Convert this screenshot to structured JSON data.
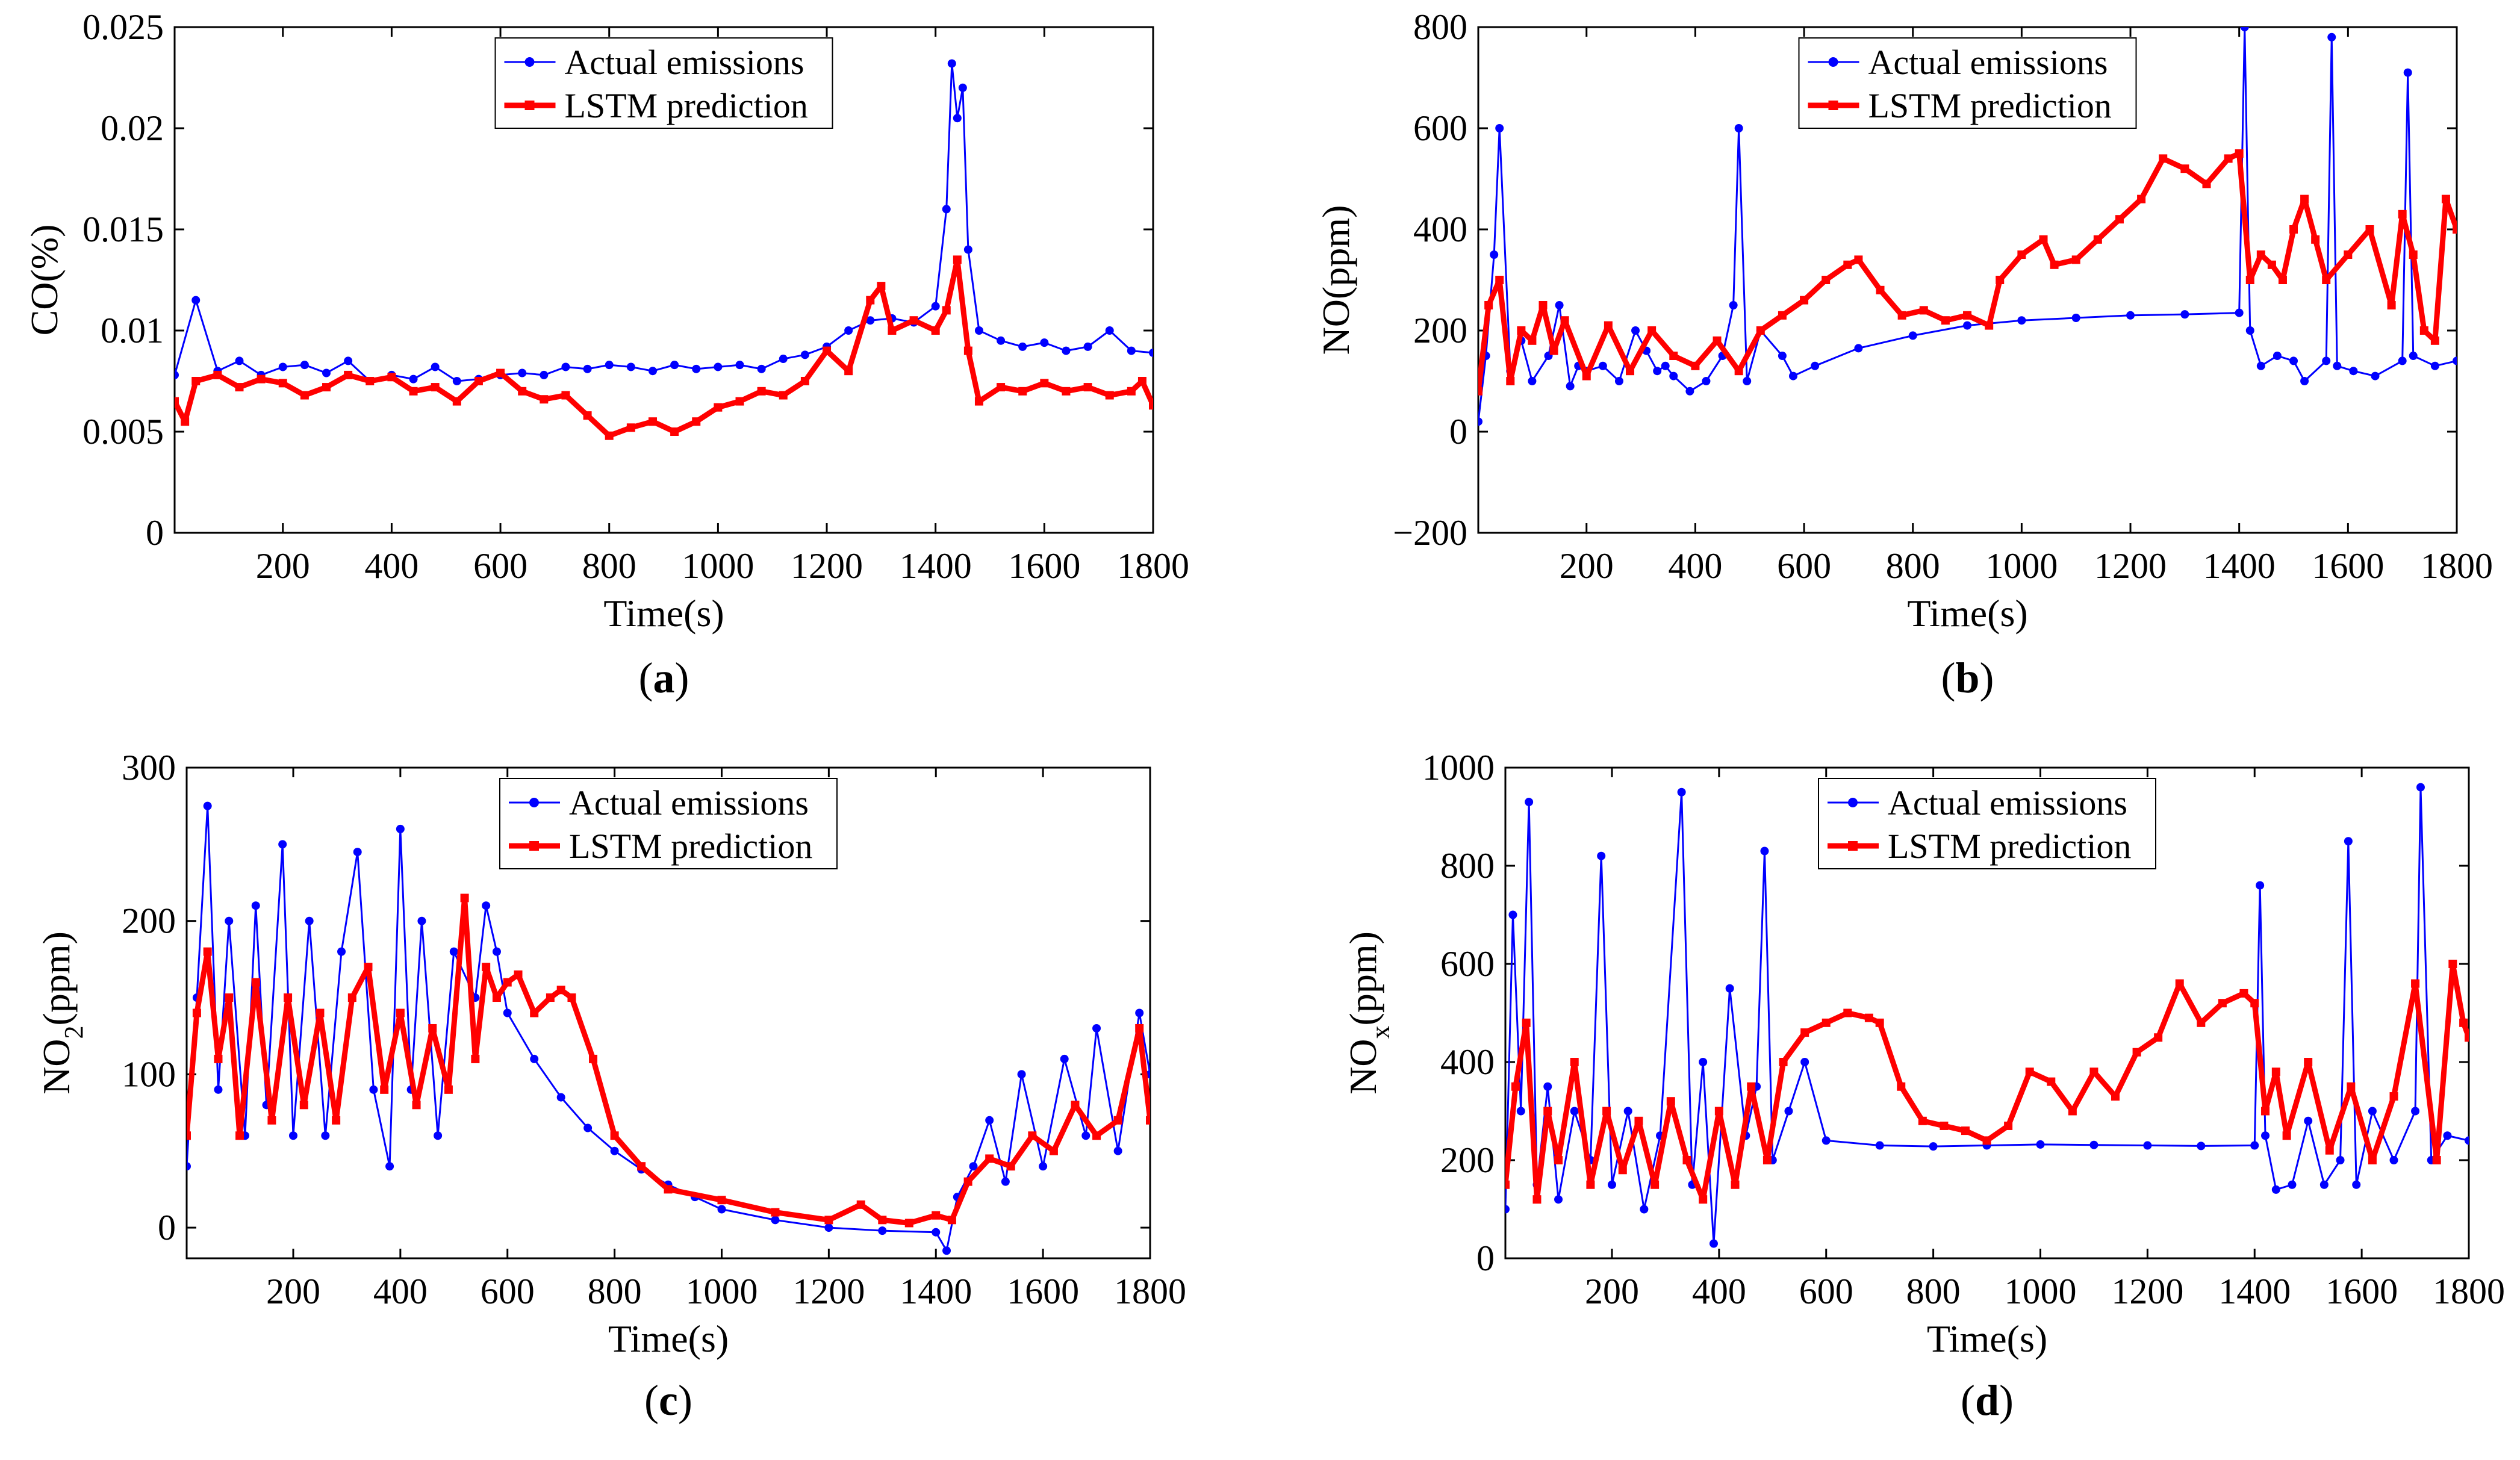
{
  "legend_labels": [
    "Actual emissions",
    "LSTM prediction"
  ],
  "colors": {
    "actual": "#0000ff",
    "prediction": "#ff0000"
  },
  "chart_data": [
    {
      "panel": "(a)",
      "caption_letter": "a",
      "type": "line",
      "xlabel": "Time(s)",
      "ylabel": "CO(%)",
      "xlim": [
        1,
        1800
      ],
      "ylim": [
        0,
        0.025
      ],
      "xticks": [
        200,
        400,
        600,
        800,
        1000,
        1200,
        1400,
        1600,
        1800
      ],
      "xtick_labels": [
        "200",
        "400",
        "600",
        "800",
        "1000",
        "1200",
        "1400",
        "1600",
        "1800"
      ],
      "yticks": [
        0,
        0.005,
        0.01,
        0.015,
        0.02,
        0.025
      ],
      "ytick_labels": [
        "0",
        "0.005",
        "0.01",
        "0.015",
        "0.02",
        "0.025"
      ],
      "legend_position": "top-center",
      "series": [
        {
          "name": "Actual emissions",
          "color": "#0000ff",
          "marker": "dot",
          "x": [
            1,
            40,
            80,
            120,
            160,
            200,
            240,
            280,
            320,
            360,
            400,
            440,
            480,
            520,
            560,
            600,
            640,
            680,
            720,
            760,
            800,
            840,
            880,
            920,
            960,
            1000,
            1040,
            1080,
            1120,
            1160,
            1200,
            1240,
            1280,
            1320,
            1360,
            1400,
            1420,
            1430,
            1440,
            1450,
            1460,
            1480,
            1520,
            1560,
            1600,
            1640,
            1680,
            1720,
            1760,
            1800
          ],
          "y": [
            0.0078,
            0.0115,
            0.008,
            0.0085,
            0.0078,
            0.0082,
            0.0083,
            0.0079,
            0.0085,
            0.0075,
            0.0078,
            0.0076,
            0.0082,
            0.0075,
            0.0076,
            0.0078,
            0.0079,
            0.0078,
            0.0082,
            0.0081,
            0.0083,
            0.0082,
            0.008,
            0.0083,
            0.0081,
            0.0082,
            0.0083,
            0.0081,
            0.0086,
            0.0088,
            0.0092,
            0.01,
            0.0105,
            0.0106,
            0.0104,
            0.0112,
            0.016,
            0.0232,
            0.0205,
            0.022,
            0.014,
            0.01,
            0.0095,
            0.0092,
            0.0094,
            0.009,
            0.0092,
            0.01,
            0.009,
            0.0089
          ]
        },
        {
          "name": "LSTM prediction",
          "color": "#ff0000",
          "marker": "square",
          "x": [
            1,
            20,
            40,
            80,
            120,
            160,
            200,
            240,
            280,
            320,
            360,
            400,
            440,
            480,
            520,
            560,
            600,
            640,
            680,
            720,
            760,
            800,
            840,
            880,
            920,
            960,
            1000,
            1040,
            1080,
            1120,
            1160,
            1200,
            1240,
            1280,
            1300,
            1320,
            1360,
            1400,
            1420,
            1440,
            1460,
            1480,
            1520,
            1560,
            1600,
            1640,
            1680,
            1720,
            1760,
            1780,
            1800
          ],
          "y": [
            0.0065,
            0.0055,
            0.0075,
            0.0078,
            0.0072,
            0.0076,
            0.0074,
            0.0068,
            0.0072,
            0.0078,
            0.0075,
            0.0077,
            0.007,
            0.0072,
            0.0065,
            0.0075,
            0.0079,
            0.007,
            0.0066,
            0.0068,
            0.0058,
            0.0048,
            0.0052,
            0.0055,
            0.005,
            0.0055,
            0.0062,
            0.0065,
            0.007,
            0.0068,
            0.0075,
            0.009,
            0.008,
            0.0115,
            0.0122,
            0.01,
            0.0105,
            0.01,
            0.011,
            0.0135,
            0.009,
            0.0065,
            0.0072,
            0.007,
            0.0074,
            0.007,
            0.0072,
            0.0068,
            0.007,
            0.0075,
            0.0063
          ]
        }
      ]
    },
    {
      "panel": "(b)",
      "caption_letter": "b",
      "type": "line",
      "xlabel": "Time(s)",
      "ylabel": "NO(ppm)",
      "xlim": [
        1,
        1800
      ],
      "ylim": [
        -200,
        800
      ],
      "xticks": [
        200,
        400,
        600,
        800,
        1000,
        1200,
        1400,
        1600,
        1800
      ],
      "xtick_labels": [
        "200",
        "400",
        "600",
        "800",
        "1000",
        "1200",
        "1400",
        "1600",
        "1800"
      ],
      "yticks": [
        -200,
        0,
        200,
        400,
        600,
        800
      ],
      "ytick_labels": [
        "−200",
        "0",
        "200",
        "400",
        "600",
        "800"
      ],
      "legend_position": "top-center",
      "series": [
        {
          "name": "Actual emissions",
          "color": "#0000ff",
          "marker": "dot",
          "x": [
            1,
            15,
            30,
            40,
            60,
            80,
            100,
            130,
            150,
            170,
            185,
            200,
            230,
            260,
            290,
            310,
            330,
            345,
            360,
            390,
            420,
            450,
            470,
            480,
            495,
            520,
            560,
            580,
            620,
            700,
            800,
            900,
            1000,
            1100,
            1200,
            1300,
            1400,
            1410,
            1420,
            1440,
            1470,
            1500,
            1520,
            1560,
            1570,
            1580,
            1610,
            1650,
            1700,
            1710,
            1720,
            1760,
            1800
          ],
          "y": [
            20,
            150,
            350,
            600,
            120,
            180,
            100,
            150,
            250,
            90,
            130,
            120,
            130,
            100,
            200,
            160,
            120,
            130,
            110,
            80,
            100,
            150,
            250,
            600,
            100,
            200,
            150,
            110,
            130,
            165,
            190,
            210,
            220,
            225,
            230,
            232,
            235,
            800,
            200,
            130,
            150,
            140,
            100,
            140,
            780,
            130,
            120,
            110,
            140,
            710,
            150,
            130,
            140
          ]
        },
        {
          "name": "LSTM prediction",
          "color": "#ff0000",
          "marker": "square",
          "x": [
            1,
            20,
            40,
            60,
            80,
            100,
            120,
            140,
            160,
            200,
            240,
            280,
            320,
            360,
            400,
            440,
            480,
            520,
            560,
            600,
            640,
            680,
            700,
            740,
            780,
            820,
            860,
            900,
            940,
            960,
            1000,
            1040,
            1060,
            1100,
            1140,
            1180,
            1220,
            1260,
            1300,
            1340,
            1380,
            1400,
            1420,
            1440,
            1460,
            1480,
            1500,
            1520,
            1540,
            1560,
            1600,
            1640,
            1680,
            1700,
            1720,
            1740,
            1760,
            1780,
            1800
          ],
          "y": [
            80,
            250,
            300,
            100,
            200,
            180,
            250,
            160,
            220,
            110,
            210,
            120,
            200,
            150,
            130,
            180,
            120,
            200,
            230,
            260,
            300,
            330,
            340,
            280,
            230,
            240,
            220,
            230,
            210,
            300,
            350,
            380,
            330,
            340,
            380,
            420,
            460,
            540,
            520,
            490,
            540,
            550,
            300,
            350,
            330,
            300,
            400,
            460,
            380,
            300,
            350,
            400,
            250,
            430,
            350,
            200,
            180,
            460,
            400
          ]
        }
      ]
    },
    {
      "panel": "(c)",
      "caption_letter": "c",
      "type": "line",
      "xlabel": "Time(s)",
      "ylabel": "NO",
      "ylabel_sub": "2",
      "ylabel_after": "(ppm)",
      "xlim": [
        1,
        1800
      ],
      "ylim": [
        -20,
        300
      ],
      "xticks": [
        200,
        400,
        600,
        800,
        1000,
        1200,
        1400,
        1600,
        1800
      ],
      "xtick_labels": [
        "200",
        "400",
        "600",
        "800",
        "1000",
        "1200",
        "1400",
        "1600",
        "1800"
      ],
      "yticks": [
        0,
        100,
        200,
        300
      ],
      "ytick_labels": [
        "0",
        "100",
        "200",
        "300"
      ],
      "legend_position": "top-center",
      "series": [
        {
          "name": "Actual emissions",
          "color": "#0000ff",
          "marker": "dot",
          "x": [
            1,
            20,
            40,
            60,
            80,
            110,
            130,
            150,
            180,
            200,
            230,
            260,
            290,
            320,
            350,
            380,
            400,
            420,
            440,
            470,
            500,
            540,
            560,
            580,
            600,
            650,
            700,
            750,
            800,
            850,
            900,
            950,
            1000,
            1100,
            1200,
            1300,
            1400,
            1420,
            1440,
            1470,
            1500,
            1530,
            1560,
            1600,
            1640,
            1680,
            1700,
            1740,
            1780,
            1800
          ],
          "y": [
            40,
            150,
            275,
            90,
            200,
            60,
            210,
            80,
            250,
            60,
            200,
            60,
            180,
            245,
            90,
            40,
            260,
            90,
            200,
            60,
            180,
            150,
            210,
            180,
            140,
            110,
            85,
            65,
            50,
            38,
            28,
            20,
            12,
            5,
            0,
            -2,
            -3,
            -15,
            20,
            40,
            70,
            30,
            100,
            40,
            110,
            60,
            130,
            50,
            140,
            100
          ]
        },
        {
          "name": "LSTM prediction",
          "color": "#ff0000",
          "marker": "square",
          "x": [
            1,
            20,
            40,
            60,
            80,
            100,
            130,
            160,
            190,
            220,
            250,
            280,
            310,
            340,
            370,
            400,
            430,
            460,
            490,
            520,
            540,
            560,
            580,
            600,
            620,
            650,
            680,
            700,
            720,
            760,
            800,
            850,
            900,
            1000,
            1100,
            1200,
            1260,
            1300,
            1350,
            1400,
            1430,
            1460,
            1500,
            1540,
            1580,
            1620,
            1660,
            1700,
            1740,
            1780,
            1800
          ],
          "y": [
            60,
            140,
            180,
            110,
            150,
            60,
            160,
            70,
            150,
            80,
            140,
            70,
            150,
            170,
            90,
            140,
            80,
            130,
            90,
            215,
            110,
            170,
            150,
            160,
            165,
            140,
            150,
            155,
            150,
            110,
            60,
            40,
            25,
            18,
            10,
            5,
            15,
            5,
            3,
            8,
            5,
            30,
            45,
            40,
            60,
            50,
            80,
            60,
            70,
            130,
            70
          ]
        }
      ]
    },
    {
      "panel": "(d)",
      "caption_letter": "d",
      "type": "line",
      "xlabel": "Time(s)",
      "ylabel": "NO",
      "ylabel_sub": "x",
      "ylabel_after": "(ppm)",
      "xlim": [
        1,
        1800
      ],
      "ylim": [
        0,
        1000
      ],
      "xticks": [
        200,
        400,
        600,
        800,
        1000,
        1200,
        1400,
        1600,
        1800
      ],
      "xtick_labels": [
        "200",
        "400",
        "600",
        "800",
        "1000",
        "1200",
        "1400",
        "1600",
        "1800"
      ],
      "yticks": [
        0,
        200,
        400,
        600,
        800,
        1000
      ],
      "ytick_labels": [
        "0",
        "200",
        "400",
        "600",
        "800",
        "1000"
      ],
      "legend_position": "top-center",
      "series": [
        {
          "name": "Actual emissions",
          "color": "#0000ff",
          "marker": "dot",
          "x": [
            1,
            15,
            30,
            45,
            60,
            80,
            100,
            130,
            160,
            180,
            200,
            230,
            260,
            290,
            330,
            350,
            370,
            390,
            420,
            450,
            470,
            485,
            500,
            530,
            560,
            600,
            700,
            800,
            900,
            1000,
            1100,
            1200,
            1300,
            1400,
            1410,
            1420,
            1440,
            1470,
            1500,
            1530,
            1560,
            1575,
            1590,
            1620,
            1660,
            1700,
            1710,
            1730,
            1760,
            1800
          ],
          "y": [
            100,
            700,
            300,
            930,
            150,
            350,
            120,
            300,
            200,
            820,
            150,
            300,
            100,
            250,
            950,
            150,
            400,
            30,
            550,
            250,
            350,
            830,
            200,
            300,
            400,
            240,
            230,
            228,
            230,
            232,
            231,
            230,
            229,
            230,
            760,
            250,
            140,
            150,
            280,
            150,
            200,
            850,
            150,
            300,
            200,
            300,
            960,
            200,
            250,
            240
          ]
        },
        {
          "name": "LSTM prediction",
          "color": "#ff0000",
          "marker": "square",
          "x": [
            1,
            20,
            40,
            60,
            80,
            100,
            130,
            160,
            190,
            220,
            250,
            280,
            310,
            340,
            370,
            400,
            430,
            460,
            490,
            520,
            560,
            600,
            640,
            680,
            700,
            740,
            780,
            820,
            860,
            900,
            940,
            980,
            1020,
            1060,
            1100,
            1140,
            1180,
            1220,
            1260,
            1300,
            1340,
            1380,
            1400,
            1420,
            1440,
            1460,
            1500,
            1540,
            1580,
            1620,
            1660,
            1700,
            1740,
            1770,
            1790,
            1800
          ],
          "y": [
            150,
            350,
            480,
            120,
            300,
            200,
            400,
            150,
            300,
            180,
            280,
            150,
            320,
            200,
            120,
            300,
            150,
            350,
            200,
            400,
            460,
            480,
            500,
            490,
            480,
            350,
            280,
            270,
            260,
            240,
            270,
            380,
            360,
            300,
            380,
            330,
            420,
            450,
            560,
            480,
            520,
            540,
            520,
            300,
            380,
            250,
            400,
            220,
            350,
            200,
            330,
            560,
            200,
            600,
            480,
            450
          ]
        }
      ]
    }
  ]
}
